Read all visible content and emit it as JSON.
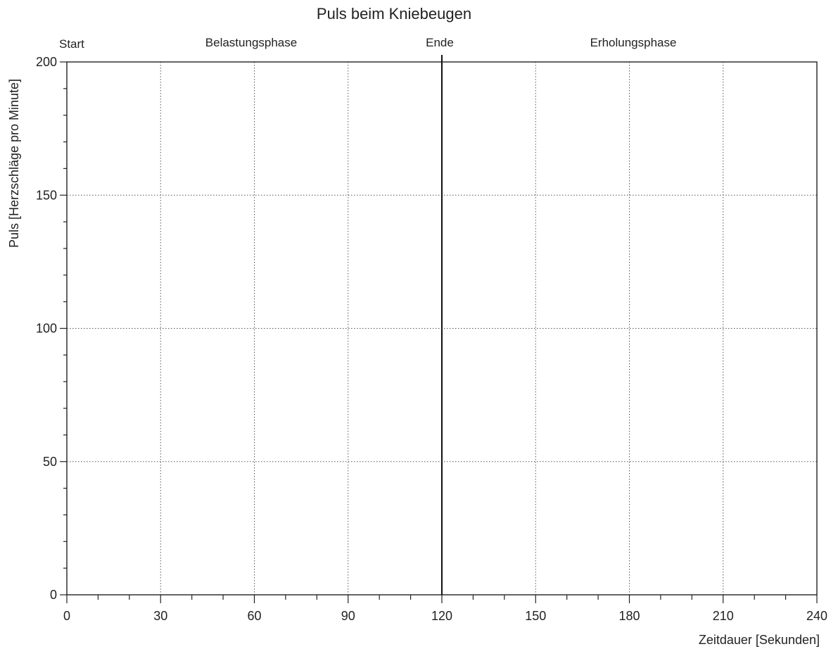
{
  "chart_data": {
    "type": "line",
    "title": "Puls beim Kniebeugen",
    "xlabel": "Zeitdauer [Sekunden]",
    "ylabel": "Puls [Herzschläge pro Minute]",
    "xlim": [
      0,
      240
    ],
    "ylim": [
      0,
      200
    ],
    "x_ticks": [
      0,
      30,
      60,
      90,
      120,
      150,
      180,
      210,
      240
    ],
    "x_minor_step": 10,
    "y_ticks": [
      0,
      50,
      100,
      150,
      200
    ],
    "y_minor_step": 10,
    "grid": true,
    "series": [],
    "phase_markers": [
      {
        "label": "Start",
        "x": 0
      },
      {
        "label": "Ende",
        "x": 120
      }
    ],
    "phases": [
      {
        "label": "Belastungsphase",
        "from": 0,
        "to": 120
      },
      {
        "label": "Erholungsphase",
        "from": 120,
        "to": 240
      }
    ]
  }
}
